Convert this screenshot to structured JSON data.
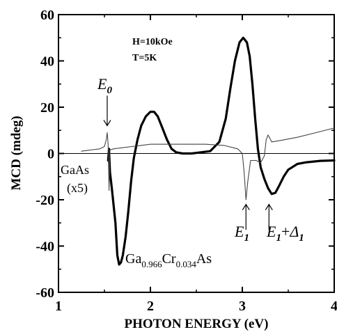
{
  "chart_data": {
    "type": "line",
    "xlabel": "PHOTON  ENERGY   (eV)",
    "ylabel": "MCD  (mdeg)",
    "xlim": [
      1,
      4
    ],
    "ylim": [
      -60,
      60
    ],
    "x_ticks": [
      1,
      2,
      3,
      4
    ],
    "y_ticks": [
      60,
      40,
      20,
      0,
      -20,
      -40,
      -60
    ],
    "x_tick_labels": [
      "1",
      "2",
      "3",
      "4"
    ],
    "y_tick_labels": [
      "60",
      "40",
      "20",
      "0",
      "-20",
      "-40",
      "-60"
    ],
    "zero_line": true,
    "grid": false,
    "conditions": [
      "H=10kOe",
      "T=5K"
    ],
    "series": [
      {
        "name": "Ga0.966Cr0.034As",
        "style": "thick",
        "color": "#000000",
        "points": [
          [
            1.54,
            -3
          ],
          [
            1.55,
            2
          ],
          [
            1.56,
            -8
          ],
          [
            1.58,
            -15
          ],
          [
            1.62,
            -30
          ],
          [
            1.64,
            -44
          ],
          [
            1.66,
            -48
          ],
          [
            1.68,
            -47
          ],
          [
            1.7,
            -44
          ],
          [
            1.73,
            -36
          ],
          [
            1.76,
            -25
          ],
          [
            1.79,
            -12
          ],
          [
            1.82,
            -2
          ],
          [
            1.86,
            6
          ],
          [
            1.9,
            12
          ],
          [
            1.95,
            16
          ],
          [
            2.0,
            18
          ],
          [
            2.04,
            18
          ],
          [
            2.08,
            16
          ],
          [
            2.13,
            11
          ],
          [
            2.18,
            6
          ],
          [
            2.23,
            2
          ],
          [
            2.28,
            0.5
          ],
          [
            2.35,
            0
          ],
          [
            2.45,
            0
          ],
          [
            2.55,
            0.5
          ],
          [
            2.65,
            1
          ],
          [
            2.75,
            5
          ],
          [
            2.82,
            15
          ],
          [
            2.87,
            28
          ],
          [
            2.92,
            40
          ],
          [
            2.97,
            48
          ],
          [
            3.01,
            50
          ],
          [
            3.05,
            48
          ],
          [
            3.08,
            42
          ],
          [
            3.11,
            30
          ],
          [
            3.14,
            15
          ],
          [
            3.17,
            2
          ],
          [
            3.2,
            -6
          ],
          [
            3.24,
            -11
          ],
          [
            3.28,
            -15
          ],
          [
            3.32,
            -17.5
          ],
          [
            3.36,
            -17
          ],
          [
            3.4,
            -14
          ],
          [
            3.45,
            -10
          ],
          [
            3.5,
            -7
          ],
          [
            3.6,
            -4.5
          ],
          [
            3.7,
            -3.8
          ],
          [
            3.85,
            -3.2
          ],
          [
            4.0,
            -3
          ]
        ]
      },
      {
        "name": "GaAs (x5)",
        "style": "thin",
        "color": "#444444",
        "points": [
          [
            1.25,
            1
          ],
          [
            1.35,
            1.5
          ],
          [
            1.45,
            2
          ],
          [
            1.5,
            3
          ],
          [
            1.52,
            6
          ],
          [
            1.53,
            9
          ],
          [
            1.54,
            4
          ],
          [
            1.545,
            -5
          ],
          [
            1.55,
            -16
          ],
          [
            1.555,
            -6
          ],
          [
            1.56,
            1.5
          ],
          [
            1.6,
            2
          ],
          [
            1.7,
            2.5
          ],
          [
            1.8,
            3
          ],
          [
            1.9,
            3.5
          ],
          [
            2.0,
            4
          ],
          [
            2.2,
            4
          ],
          [
            2.4,
            4
          ],
          [
            2.6,
            4
          ],
          [
            2.8,
            3.5
          ],
          [
            2.95,
            2
          ],
          [
            3.0,
            0
          ],
          [
            3.02,
            -8
          ],
          [
            3.04,
            -20
          ],
          [
            3.06,
            -12
          ],
          [
            3.09,
            -3
          ],
          [
            3.15,
            -3
          ],
          [
            3.2,
            -4
          ],
          [
            3.24,
            -1
          ],
          [
            3.26,
            6
          ],
          [
            3.28,
            8
          ],
          [
            3.32,
            5
          ],
          [
            3.4,
            5.5
          ],
          [
            3.6,
            7
          ],
          [
            3.8,
            9
          ],
          [
            4.0,
            11
          ]
        ]
      }
    ],
    "annotations": {
      "e0": {
        "label": "E",
        "sub": "0",
        "arrow_x": 1.53,
        "arrow_from_y": 25,
        "arrow_to_y": 12
      },
      "gaas": {
        "line1": "GaAs",
        "line2": "(x5)"
      },
      "compound": {
        "p1": "Ga",
        "s1": "0.966",
        "p2": "Cr",
        "s2": "0.034",
        "p3": "As"
      },
      "e1": {
        "label": "E",
        "sub": "1",
        "arrow_x": 3.04,
        "arrow_from_y": -33,
        "arrow_to_y": -22
      },
      "e1d1": {
        "label": "E",
        "sub": "1",
        "plus": "+",
        "delta": "Δ",
        "dsub": "1",
        "arrow_x": 3.29,
        "arrow_from_y": -33,
        "arrow_to_y": -22
      }
    }
  }
}
